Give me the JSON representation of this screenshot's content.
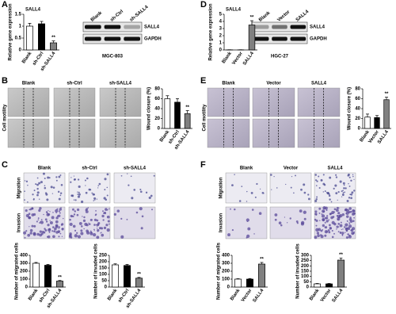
{
  "panel_letters": [
    "A",
    "B",
    "C",
    "D",
    "E",
    "F"
  ],
  "blots": [
    {
      "lanes": [
        "Blank",
        "sh-Ctrl",
        "sh-SALL4"
      ],
      "bands": [
        "SALL4",
        "GAPDH"
      ],
      "cell_line": "MGC-803"
    },
    {
      "lanes": [
        "Blank",
        "Vector",
        "SALL4"
      ],
      "bands": [
        "SALL4",
        "GAPDH"
      ],
      "cell_line": "HGC-27"
    }
  ],
  "image_grids": [
    {
      "columns": [
        "Blank",
        "sh-Ctrl",
        "sh-SALL4"
      ],
      "row_label": "Cell motility"
    },
    {
      "columns": [
        "Blank",
        "Vector",
        "SALL4"
      ],
      "row_label": "Cell motility"
    },
    {
      "columns": [
        "Blank",
        "sh-Ctrl",
        "sh-SALL4"
      ],
      "rows": [
        "Migration",
        "Invasion"
      ]
    },
    {
      "columns": [
        "Blank",
        "Vector",
        "SALL4"
      ],
      "rows": [
        "Migration",
        "Invasion"
      ]
    }
  ],
  "chart_data": [
    {
      "type": "bar",
      "title": "SALL4",
      "y_label": "Relative gene expression",
      "categories": [
        "Blank",
        "sh-Ctrl",
        "sh-SALL4"
      ],
      "values": [
        1.0,
        1.1,
        0.3
      ],
      "errors": [
        0.12,
        0.1,
        0.08
      ],
      "colors": [
        "#ffffff",
        "#000000",
        "#808080"
      ],
      "annotations": [
        null,
        null,
        "**"
      ],
      "ylim": [
        0,
        1.5
      ],
      "yticks": [
        0,
        0.5,
        1,
        1.5
      ]
    },
    {
      "type": "bar",
      "title": "SALL4",
      "y_label": "Relative gene expression",
      "categories": [
        "Blank",
        "Vector",
        "SALL4"
      ],
      "values": [
        0.02,
        0.02,
        3.5
      ],
      "errors": [
        0.01,
        0.01,
        0.6
      ],
      "colors": [
        "#ffffff",
        "#000000",
        "#808080"
      ],
      "annotations": [
        null,
        null,
        "**"
      ],
      "ylim": [
        0,
        5
      ],
      "yticks": [
        0,
        1,
        2,
        3,
        4,
        5
      ]
    },
    {
      "type": "bar",
      "y_label": "Wound closure (%)",
      "categories": [
        "Blank",
        "sh-Ctrl",
        "sh-SALL4"
      ],
      "values": [
        60,
        53,
        30
      ],
      "errors": [
        6,
        7,
        6
      ],
      "colors": [
        "#ffffff",
        "#000000",
        "#808080"
      ],
      "annotations": [
        null,
        null,
        "**"
      ],
      "ylim": [
        0,
        80
      ],
      "yticks": [
        0,
        20,
        40,
        60,
        80
      ]
    },
    {
      "type": "bar",
      "y_label": "Wound closure (%)",
      "categories": [
        "Blank",
        "Vector",
        "SALL4"
      ],
      "values": [
        23,
        22,
        58
      ],
      "errors": [
        6,
        4,
        5
      ],
      "colors": [
        "#ffffff",
        "#000000",
        "#808080"
      ],
      "annotations": [
        null,
        null,
        "**"
      ],
      "ylim": [
        0,
        80
      ],
      "yticks": [
        0,
        20,
        40,
        60,
        80
      ]
    },
    {
      "type": "bar",
      "y_label": "Number of migrated cells",
      "categories": [
        "Blank",
        "sh-Ctrl",
        "sh-SALL4"
      ],
      "values": [
        300,
        275,
        75
      ],
      "errors": [
        10,
        10,
        8
      ],
      "colors": [
        "#ffffff",
        "#000000",
        "#808080"
      ],
      "annotations": [
        null,
        null,
        "**"
      ],
      "ylim": [
        0,
        400
      ],
      "yticks": [
        0,
        100,
        200,
        300,
        400
      ]
    },
    {
      "type": "bar",
      "y_label": "Number of invaded cells",
      "categories": [
        "Blank",
        "sh-Ctrl",
        "sh-SALL4"
      ],
      "values": [
        175,
        170,
        70
      ],
      "errors": [
        8,
        8,
        6
      ],
      "colors": [
        "#ffffff",
        "#000000",
        "#808080"
      ],
      "annotations": [
        null,
        null,
        "**"
      ],
      "ylim": [
        0,
        250
      ],
      "yticks": [
        0,
        50,
        100,
        150,
        200,
        250
      ]
    },
    {
      "type": "bar",
      "y_label": "Number of migrated cells",
      "categories": [
        "Blank",
        "Vector",
        "SALL4"
      ],
      "values": [
        100,
        100,
        290
      ],
      "errors": [
        5,
        8,
        20
      ],
      "colors": [
        "#ffffff",
        "#000000",
        "#808080"
      ],
      "annotations": [
        null,
        null,
        "**"
      ],
      "ylim": [
        0,
        400
      ],
      "yticks": [
        0,
        100,
        200,
        300,
        400
      ]
    },
    {
      "type": "bar",
      "y_label": "Number of invaded cells",
      "categories": [
        "Blank",
        "Vector",
        "SALL4"
      ],
      "values": [
        30,
        30,
        255
      ],
      "errors": [
        4,
        4,
        20
      ],
      "colors": [
        "#ffffff",
        "#000000",
        "#808080"
      ],
      "annotations": [
        null,
        null,
        "**"
      ],
      "ylim": [
        0,
        300
      ],
      "yticks": [
        0,
        50,
        100,
        150,
        200,
        250,
        300
      ]
    }
  ]
}
